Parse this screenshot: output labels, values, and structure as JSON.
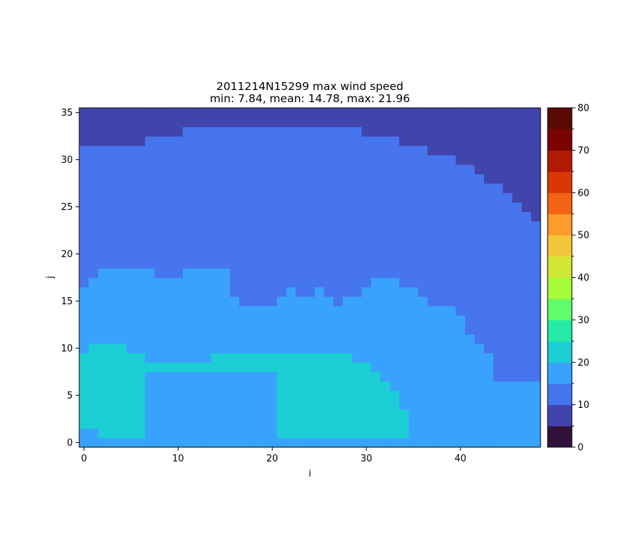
{
  "chart_data": {
    "type": "heatmap",
    "title": "2011214N15299 max wind speed",
    "subtitle": "min: 7.84, mean: 14.78, max: 21.96",
    "xlabel": "i",
    "ylabel": "j",
    "xlim": [
      -0.5,
      48.5
    ],
    "ylim": [
      -0.5,
      35.5
    ],
    "xticks": [
      0,
      10,
      20,
      30,
      40
    ],
    "yticks": [
      0,
      5,
      10,
      15,
      20,
      25,
      30,
      35
    ],
    "grid": false,
    "colorbar": {
      "range": [
        0,
        80
      ],
      "ticks": [
        0,
        10,
        20,
        30,
        40,
        50,
        60,
        70,
        80
      ],
      "boundaries": [
        0,
        5,
        10,
        15,
        20,
        25,
        30,
        35,
        40,
        45,
        50,
        55,
        60,
        65,
        70,
        75,
        80
      ],
      "colors": [
        "#30123b",
        "#4145ab",
        "#4675ed",
        "#39a2fc",
        "#1bcfd4",
        "#24eca6",
        "#61fc6c",
        "#a4fc3b",
        "#d1e834",
        "#f3c63a",
        "#fe9b2d",
        "#f36315",
        "#d93806",
        "#b11901",
        "#7a0402",
        "#5a0a01"
      ]
    },
    "level_bands": [
      {
        "range": [
          5,
          10
        ],
        "color": "#4145ab"
      },
      {
        "range": [
          10,
          15
        ],
        "color": "#4675ed"
      },
      {
        "range": [
          15,
          20
        ],
        "color": "#39a2fc"
      },
      {
        "range": [
          20,
          25
        ],
        "color": "#1bcfd4"
      }
    ]
  }
}
